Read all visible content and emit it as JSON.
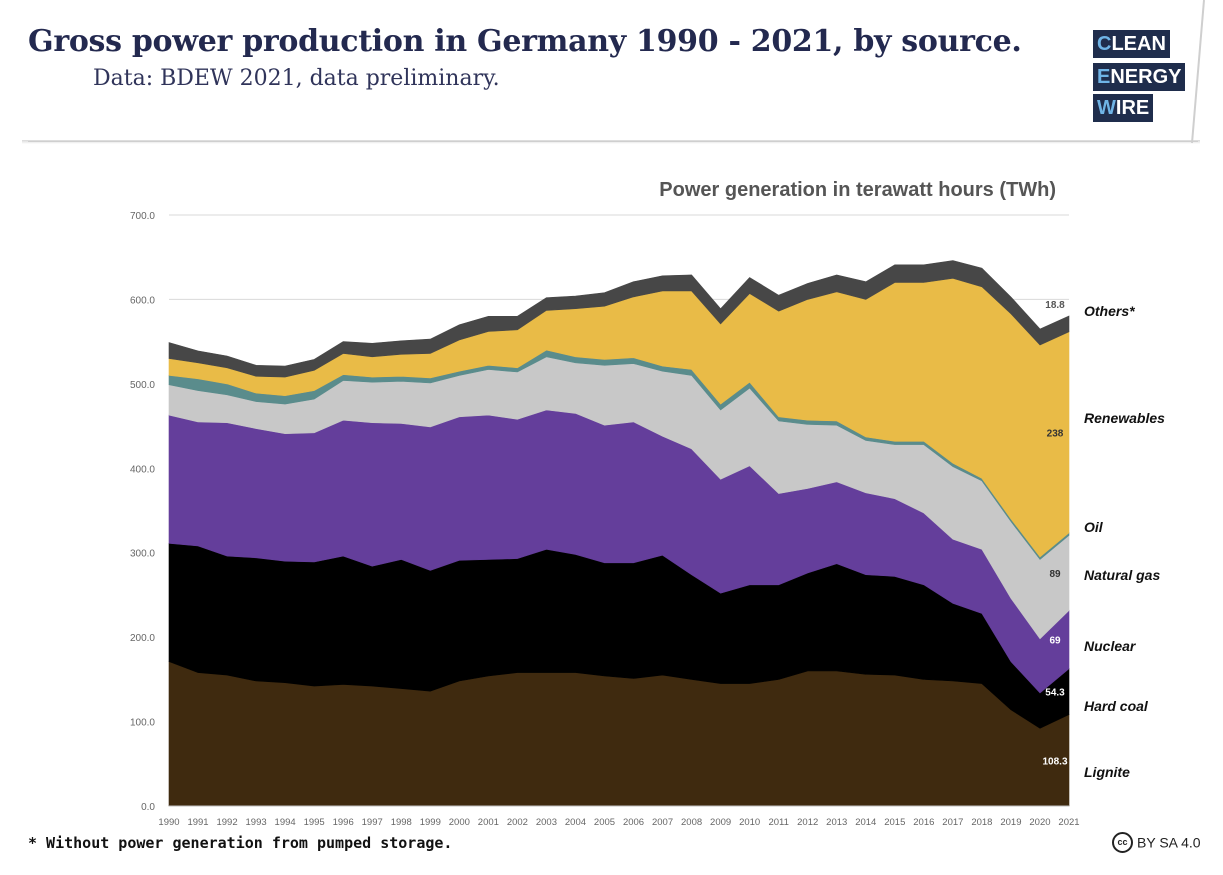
{
  "header": {
    "title": "Gross power production in Germany 1990 - 2021, by source.",
    "subtitle": "Data: BDEW 2021, data preliminary.",
    "logo_words": [
      "CLEAN",
      "ENERGY",
      "WIRE"
    ]
  },
  "footer": {
    "footnote": "* Without power generation from pumped storage.",
    "license": "BY SA 4.0",
    "license_icon": "cc-icon"
  },
  "chart_data": {
    "type": "area",
    "stacked": true,
    "title": "Power generation in terawatt hours (TWh)",
    "x": [
      "1990",
      "1991",
      "1992",
      "1993",
      "1994",
      "1995",
      "1996",
      "1997",
      "1998",
      "1999",
      "2000",
      "2001",
      "2002",
      "2003",
      "2004",
      "2005",
      "2006",
      "2007",
      "2008",
      "2009",
      "2010",
      "2011",
      "2012",
      "2013",
      "2014",
      "2015",
      "2016",
      "2017",
      "2018",
      "2019",
      "2020",
      "2021"
    ],
    "y_ticks": [
      "0.0",
      "100.0",
      "200.0",
      "300.0",
      "400.0",
      "500.0",
      "600.0",
      "700.0"
    ],
    "ylim": [
      0,
      700
    ],
    "grid": true,
    "legend": "right",
    "series": [
      {
        "name": "Lignite",
        "color": "#3f2a0f",
        "values": [
          171,
          158,
          155,
          148,
          146,
          142,
          144,
          142,
          139,
          136,
          148,
          154,
          158,
          158,
          158,
          154,
          151,
          155,
          150,
          145,
          145,
          150,
          160,
          160,
          156,
          155,
          150,
          148,
          145,
          114,
          92,
          108.3
        ]
      },
      {
        "name": "Hard coal",
        "color": "#000000",
        "values": [
          140,
          150,
          141,
          146,
          144,
          147,
          152,
          142,
          153,
          143,
          143,
          138,
          135,
          146,
          140,
          134,
          137,
          142,
          124,
          107,
          117,
          112,
          116,
          127,
          118,
          117,
          112,
          92,
          83,
          57,
          42,
          54.3
        ]
      },
      {
        "name": "Nuclear",
        "color": "#643e9b",
        "values": [
          152,
          147,
          158,
          153,
          151,
          153,
          161,
          170,
          161,
          170,
          170,
          171,
          165,
          165,
          167,
          163,
          167,
          141,
          149,
          135,
          141,
          108,
          100,
          97,
          97,
          92,
          85,
          76,
          76,
          75,
          64,
          69
        ]
      },
      {
        "name": "Natural gas",
        "color": "#c8c8c8",
        "values": [
          36,
          37,
          33,
          32,
          35,
          40,
          47,
          48,
          50,
          52,
          49,
          54,
          56,
          63,
          60,
          71,
          69,
          77,
          87,
          82,
          92,
          86,
          76,
          67,
          62,
          64,
          81,
          86,
          81,
          91,
          94,
          89
        ]
      },
      {
        "name": "Oil",
        "color": "#5a8c8c",
        "values": [
          11,
          14,
          13,
          10,
          10,
          10,
          7,
          6,
          6,
          6,
          5,
          5,
          5,
          8,
          7,
          7,
          7,
          6,
          7,
          7,
          7,
          5,
          5,
          5,
          4,
          4,
          4,
          4,
          3,
          3,
          3,
          3
        ]
      },
      {
        "name": "Renewables",
        "color": "#e9bb47",
        "values": [
          20,
          19,
          19,
          20,
          22,
          24,
          25,
          24,
          26,
          29,
          37,
          40,
          45,
          47,
          57,
          63,
          72,
          89,
          93,
          95,
          105,
          125,
          143,
          153,
          163,
          188,
          188,
          219,
          227,
          243,
          251,
          238
        ]
      },
      {
        "name": "Others*",
        "color": "#474747",
        "values": [
          19,
          14,
          14,
          13,
          13,
          13,
          14,
          16,
          16,
          17,
          18,
          18,
          16,
          15,
          15,
          16,
          18,
          18,
          19,
          18,
          19,
          19,
          19,
          20,
          21,
          21,
          21,
          21,
          22,
          20,
          19,
          18.8
        ]
      }
    ],
    "data_labels": [
      {
        "series": "Others*",
        "text": "18.8"
      },
      {
        "series": "Renewables",
        "text": "238"
      },
      {
        "series": "Natural gas",
        "text": "89"
      },
      {
        "series": "Nuclear",
        "text": "69"
      },
      {
        "series": "Hard coal",
        "text": "54.3"
      },
      {
        "series": "Lignite",
        "text": "108.3"
      }
    ],
    "legend_labels": [
      {
        "series": "Others*",
        "text": "Others*"
      },
      {
        "series": "Renewables",
        "text": "Renewables"
      },
      {
        "series": "Oil",
        "text": "Oil"
      },
      {
        "series": "Natural gas",
        "text": "Natural gas"
      },
      {
        "series": "Nuclear",
        "text": "Nuclear"
      },
      {
        "series": "Hard coal",
        "text": "Hard coal"
      },
      {
        "series": "Lignite",
        "text": "Lignite"
      }
    ]
  }
}
